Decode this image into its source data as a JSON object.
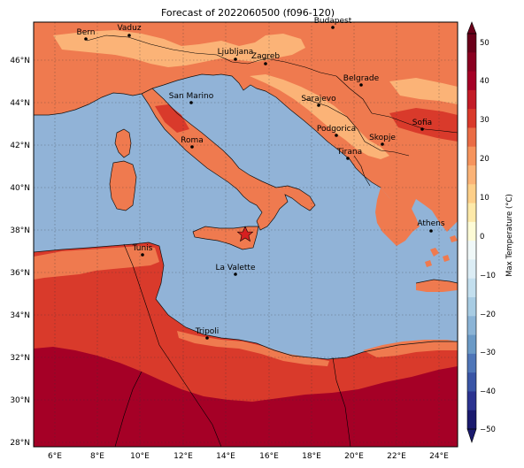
{
  "title": "Forecast of 2022060500 (f096-120)",
  "colorbar": {
    "label": "Max Temperature (°C)",
    "ticks": [
      "50",
      "40",
      "30",
      "20",
      "10",
      "0",
      "−10",
      "−20",
      "−30",
      "−40",
      "−50"
    ],
    "colors": {
      "-50": "#1a1a6e",
      "-45": "#2b3390",
      "-40": "#3a55a6",
      "-35": "#4f76b8",
      "-30": "#6b9ac6",
      "-25": "#8bb4d6",
      "-20": "#a8cce3",
      "-15": "#c3dfee",
      "-10": "#dcedf5",
      "-5": "#f0f8f8",
      "0": "#fdfbd6",
      "5": "#fde9a9",
      "10": "#fdcf89",
      "15": "#fbb377",
      "20": "#f6945d",
      "25": "#ea6c45",
      "30": "#d93a2b",
      "35": "#c31c27",
      "40": "#a50026",
      "45": "#8a0021",
      "50": "#6b001a"
    }
  },
  "axes": {
    "x_labels": [
      "6°E",
      "8°E",
      "10°E",
      "12°E",
      "14°E",
      "16°E",
      "18°E",
      "20°E",
      "22°E",
      "24°E"
    ],
    "y_labels": [
      "46°N",
      "44°N",
      "42°N",
      "40°N",
      "38°N",
      "36°N",
      "34°N",
      "32°N",
      "30°N",
      "28°N"
    ],
    "sea_color": "#91b3d7"
  },
  "marker": {
    "name": "star",
    "color": "#d62020"
  },
  "cities": [
    {
      "name": "Bern"
    },
    {
      "name": "Vaduz"
    },
    {
      "name": "Budapest"
    },
    {
      "name": "Ljubljana"
    },
    {
      "name": "Zagreb"
    },
    {
      "name": "Belgrade"
    },
    {
      "name": "San Marino"
    },
    {
      "name": "Sarajevo"
    },
    {
      "name": "Sofia"
    },
    {
      "name": "Podgorica"
    },
    {
      "name": "Skopje"
    },
    {
      "name": "Roma"
    },
    {
      "name": "Tirana"
    },
    {
      "name": "Athens"
    },
    {
      "name": "Tunis"
    },
    {
      "name": "La Valette"
    },
    {
      "name": "Tripoli"
    }
  ]
}
